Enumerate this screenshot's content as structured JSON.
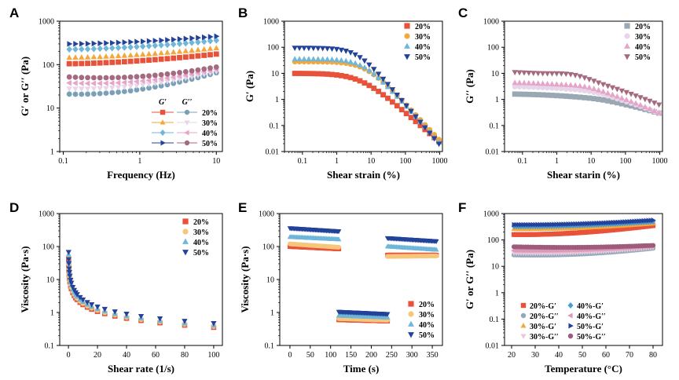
{
  "colors": {
    "red": "#e8523a",
    "orange": "#f2a83b",
    "lightblue": "#6fb6d9",
    "navy": "#23429a",
    "steel": "#7aa0b8",
    "lavender": "#e7d6ea",
    "pink": "#e6a4c8",
    "mauve": "#a46a80",
    "gray": "#9aa8b3",
    "peach": "#f7c67a",
    "mblue": "#4a9ad4",
    "plum": "#9e5c7a",
    "greyblue": "#8eaabb",
    "lightpink": "#ecc6da",
    "rose": "#d89ab8"
  },
  "chart_data": [
    {
      "panel": "A",
      "type": "line",
      "scale": "loglog",
      "xlabel": "Frequency (Hz)",
      "ylabel": "G′ or G′′ (Pa)",
      "xlim": [
        0.09,
        12
      ],
      "ylim": [
        1,
        1000
      ],
      "xticks": [
        0.1,
        1,
        10
      ],
      "xticklabels": [
        "0.1",
        "1",
        "10"
      ],
      "yticks": [
        1,
        10,
        100,
        1000
      ],
      "yticklabels": [
        "1",
        "10",
        "100",
        "1000"
      ],
      "legend_header": [
        "G′",
        "G′′"
      ],
      "legend": [
        {
          "label": "20%",
          "gp": {
            "marker": "square",
            "color": "#e8523a"
          },
          "gpp": {
            "marker": "circle",
            "color": "#7aa0b8"
          }
        },
        {
          "label": "30%",
          "gp": {
            "marker": "triangle",
            "color": "#f2a83b"
          },
          "gpp": {
            "marker": "tridown",
            "color": "#e7d6ea"
          }
        },
        {
          "label": "40%",
          "gp": {
            "marker": "diamond",
            "color": "#6fb6d9"
          },
          "gpp": {
            "marker": "triangle-left",
            "color": "#e6a4c8"
          }
        },
        {
          "label": "50%",
          "gp": {
            "marker": "triangle-right",
            "color": "#23429a"
          },
          "gpp": {
            "marker": "circle",
            "color": "#a46a80"
          }
        }
      ],
      "series": [
        {
          "name": "20% G′",
          "marker": "square",
          "color": "#e8523a",
          "n": 25,
          "x": [
            0.12,
            10
          ],
          "y": [
            105,
            175
          ]
        },
        {
          "name": "30% G′",
          "marker": "triangle",
          "color": "#f2a83b",
          "n": 25,
          "x": [
            0.12,
            10
          ],
          "y": [
            145,
            240
          ]
        },
        {
          "name": "40% G′",
          "marker": "diamond",
          "color": "#6fb6d9",
          "n": 25,
          "x": [
            0.12,
            10
          ],
          "y": [
            225,
            360
          ]
        },
        {
          "name": "50% G′",
          "marker": "triangle-right",
          "color": "#23429a",
          "n": 25,
          "x": [
            0.12,
            10
          ],
          "y": [
            300,
            450
          ]
        },
        {
          "name": "20% G′′",
          "marker": "circle",
          "color": "#7aa0b8",
          "n": 25,
          "x": [
            0.12,
            10
          ],
          "y": [
            21,
            65
          ],
          "dip": 0.15
        },
        {
          "name": "30% G′′",
          "marker": "tridown",
          "color": "#e7d6ea",
          "n": 25,
          "x": [
            0.12,
            10
          ],
          "y": [
            28,
            70
          ],
          "dip": 0.15
        },
        {
          "name": "40% G′′",
          "marker": "triangle-left",
          "color": "#e6a4c8",
          "n": 25,
          "x": [
            0.12,
            10
          ],
          "y": [
            38,
            78
          ],
          "dip": 0.2
        },
        {
          "name": "50% G′′",
          "marker": "circle",
          "color": "#a46a80",
          "n": 25,
          "x": [
            0.12,
            10
          ],
          "y": [
            52,
            88
          ],
          "dip": 0.2
        }
      ]
    },
    {
      "panel": "B",
      "type": "line",
      "scale": "loglog",
      "xlabel": "Shear strain (%)",
      "ylabel": "G′ (Pa)",
      "xlim": [
        0.03,
        1200
      ],
      "ylim": [
        0.01,
        1000
      ],
      "xticks": [
        0.1,
        1,
        10,
        100,
        1000
      ],
      "xticklabels": [
        "0.1",
        "1",
        "10",
        "100",
        "1000"
      ],
      "yticks": [
        0.01,
        0.1,
        1,
        10,
        100,
        1000
      ],
      "yticklabels": [
        "0.01",
        "0.1",
        "1",
        "10",
        "100",
        "1000"
      ],
      "legend": [
        {
          "label": "20%",
          "marker": "square",
          "color": "#e8523a"
        },
        {
          "label": "30%",
          "marker": "circle",
          "color": "#f2a83b"
        },
        {
          "label": "40%",
          "marker": "triangle",
          "color": "#6fb6d9"
        },
        {
          "label": "50%",
          "marker": "tridown",
          "color": "#23429a"
        }
      ],
      "series": [
        {
          "name": "20%",
          "marker": "square",
          "color": "#e8523a",
          "n": 32,
          "x": [
            0.06,
            950
          ],
          "plateau": 10,
          "yc": 5,
          "slope": 1.15
        },
        {
          "name": "30%",
          "marker": "circle",
          "color": "#f2a83b",
          "n": 32,
          "x": [
            0.06,
            950
          ],
          "plateau": 28,
          "yc": 7,
          "slope": 1.4
        },
        {
          "name": "40%",
          "marker": "triangle",
          "color": "#6fb6d9",
          "n": 32,
          "x": [
            0.06,
            950
          ],
          "plateau": 35,
          "yc": 6,
          "slope": 1.45
        },
        {
          "name": "50%",
          "marker": "tridown",
          "color": "#23429a",
          "n": 32,
          "x": [
            0.06,
            950
          ],
          "plateau": 95,
          "yc": 4,
          "slope": 1.55
        }
      ]
    },
    {
      "panel": "C",
      "type": "line",
      "scale": "loglog",
      "xlabel": "Shear starin (%)",
      "ylabel": "G′′ (Pa)",
      "xlim": [
        0.03,
        1200
      ],
      "ylim": [
        0.01,
        1000
      ],
      "xticks": [
        0.1,
        1,
        10,
        100,
        1000
      ],
      "xticklabels": [
        "0.1",
        "1",
        "10",
        "100",
        "1000"
      ],
      "yticks": [
        0.01,
        0.1,
        1,
        10,
        100,
        1000
      ],
      "yticklabels": [
        "0.01",
        "0.1",
        "1",
        "10",
        "100",
        "1000"
      ],
      "legend": [
        {
          "label": "20%",
          "marker": "square",
          "color": "#9aa8b3"
        },
        {
          "label": "30%",
          "marker": "circle",
          "color": "#e7d6ea"
        },
        {
          "label": "40%",
          "marker": "triangle",
          "color": "#e6a4c8"
        },
        {
          "label": "50%",
          "marker": "tridown",
          "color": "#a46a80"
        }
      ],
      "series": [
        {
          "name": "20%",
          "marker": "square",
          "color": "#9aa8b3",
          "n": 32,
          "x": [
            0.06,
            950
          ],
          "plateau": 1.7,
          "bump": 1.05,
          "yc": 30,
          "slope": 0.45
        },
        {
          "name": "30%",
          "marker": "circle",
          "color": "#e7d6ea",
          "n": 32,
          "x": [
            0.06,
            950
          ],
          "plateau": 3.2,
          "bump": 1.1,
          "yc": 15,
          "slope": 0.55
        },
        {
          "name": "40%",
          "marker": "triangle",
          "color": "#e6a4c8",
          "n": 32,
          "x": [
            0.06,
            950
          ],
          "plateau": 4.5,
          "bump": 1.15,
          "yc": 12,
          "slope": 0.6
        },
        {
          "name": "50%",
          "marker": "tridown",
          "color": "#a46a80",
          "n": 32,
          "x": [
            0.06,
            950
          ],
          "plateau": 12,
          "bump": 1.3,
          "yc": 5,
          "slope": 0.55
        }
      ]
    },
    {
      "panel": "D",
      "type": "scatter",
      "scale": "semilogy",
      "xlabel": "Shear rate (1/s)",
      "ylabel": "Viscosity (Pa·s)",
      "xlim": [
        -6,
        106
      ],
      "ylim": [
        0.1,
        1000
      ],
      "xticks": [
        0,
        20,
        40,
        60,
        80,
        100
      ],
      "xticklabels": [
        "0",
        "20",
        "40",
        "60",
        "80",
        "100"
      ],
      "yticks": [
        0.1,
        1,
        10,
        100,
        1000
      ],
      "yticklabels": [
        "0.1",
        "1",
        "10",
        "100",
        "1000"
      ],
      "legend": [
        {
          "label": "20%",
          "marker": "square",
          "color": "#e8523a"
        },
        {
          "label": "30%",
          "marker": "circle",
          "color": "#f7c67a"
        },
        {
          "label": "40%",
          "marker": "triangle",
          "color": "#6fb6d9"
        },
        {
          "label": "50%",
          "marker": "tridown",
          "color": "#23429a"
        }
      ],
      "x": [
        0.1,
        0.2,
        0.3,
        0.5,
        0.7,
        1,
        1.5,
        2,
        3,
        4,
        5,
        6,
        8,
        10,
        13,
        16,
        20,
        25,
        32,
        40,
        50,
        63,
        80,
        100
      ],
      "series": [
        {
          "name": "20%",
          "marker": "square",
          "color": "#e8523a",
          "k": 8.5,
          "n": 0.31
        },
        {
          "name": "30%",
          "marker": "circle",
          "color": "#f7c67a",
          "k": 9.5,
          "n": 0.3
        },
        {
          "name": "40%",
          "marker": "triangle",
          "color": "#6fb6d9",
          "k": 11,
          "n": 0.28
        },
        {
          "name": "50%",
          "marker": "tridown",
          "color": "#23429a",
          "k": 13,
          "n": 0.28
        }
      ]
    },
    {
      "panel": "E",
      "type": "scatter",
      "scale": "semilogy",
      "xlabel": "Time (s)",
      "ylabel": "Viscosity (Pa·s)",
      "xlim": [
        -25,
        375
      ],
      "ylim": [
        0.1,
        1000
      ],
      "xticks": [
        0,
        50,
        100,
        150,
        200,
        250,
        300,
        350
      ],
      "xticklabels": [
        "0",
        "50",
        "100",
        "150",
        "200",
        "250",
        "300",
        "350"
      ],
      "yticks": [
        0.1,
        1,
        10,
        100,
        1000
      ],
      "yticklabels": [
        "0.1",
        "1",
        "10",
        "100",
        "1000"
      ],
      "legend": [
        {
          "label": "20%",
          "marker": "square",
          "color": "#e8523a"
        },
        {
          "label": "30%",
          "marker": "circle",
          "color": "#f7c67a"
        },
        {
          "label": "40%",
          "marker": "triangle",
          "color": "#6fb6d9"
        },
        {
          "label": "50%",
          "marker": "tridown",
          "color": "#23429a"
        }
      ],
      "segments": [
        {
          "name": "20%",
          "marker": "square",
          "color": "#e8523a",
          "stages": [
            {
              "x": [
                0,
                120
              ],
              "y": [
                100,
                85
              ]
            },
            {
              "x": [
                120,
                240
              ],
              "y": [
                0.6,
                0.55
              ]
            },
            {
              "x": [
                240,
                360
              ],
              "y": [
                55,
                55
              ]
            }
          ]
        },
        {
          "name": "30%",
          "marker": "circle",
          "color": "#f7c67a",
          "stages": [
            {
              "x": [
                0,
                120
              ],
              "y": [
                120,
                95
              ]
            },
            {
              "x": [
                120,
                240
              ],
              "y": [
                0.65,
                0.58
              ]
            },
            {
              "x": [
                240,
                360
              ],
              "y": [
                50,
                52
              ]
            }
          ]
        },
        {
          "name": "40%",
          "marker": "triangle",
          "color": "#6fb6d9",
          "stages": [
            {
              "x": [
                0,
                120
              ],
              "y": [
                195,
                165
              ]
            },
            {
              "x": [
                120,
                240
              ],
              "y": [
                0.8,
                0.7
              ]
            },
            {
              "x": [
                240,
                360
              ],
              "y": [
                100,
                80
              ]
            }
          ]
        },
        {
          "name": "50%",
          "marker": "tridown",
          "color": "#23429a",
          "stages": [
            {
              "x": [
                0,
                120
              ],
              "y": [
                360,
                290
              ]
            },
            {
              "x": [
                120,
                240
              ],
              "y": [
                1.05,
                0.9
              ]
            },
            {
              "x": [
                240,
                360
              ],
              "y": [
                180,
                145
              ]
            }
          ]
        }
      ]
    },
    {
      "panel": "F",
      "type": "line",
      "scale": "semilogy",
      "xlabel": "Temperature (°C)",
      "ylabel": "G′ or G′′ (Pa)",
      "xlim": [
        17,
        84
      ],
      "ylim": [
        0.01,
        1000
      ],
      "xticks": [
        20,
        30,
        40,
        50,
        60,
        70,
        80
      ],
      "xticklabels": [
        "20",
        "30",
        "40",
        "50",
        "60",
        "70",
        "80"
      ],
      "yticks": [
        0.01,
        0.1,
        1,
        10,
        100,
        1000
      ],
      "yticklabels": [
        "0.01",
        "0.1",
        "1",
        "10",
        "100",
        "1000"
      ],
      "legend": [
        {
          "label": "20%-G′",
          "marker": "square",
          "color": "#e8523a"
        },
        {
          "label": "40%-G′",
          "marker": "diamond",
          "color": "#4a9ad4"
        },
        {
          "label": "20%-G′′",
          "marker": "circle",
          "color": "#8eaabb"
        },
        {
          "label": "40%-G′′",
          "marker": "triangle-left",
          "color": "#d89ab8"
        },
        {
          "label": "30%-G′",
          "marker": "triangle",
          "color": "#f2a83b"
        },
        {
          "label": "50%-G′",
          "marker": "triangle-right",
          "color": "#23429a"
        },
        {
          "label": "30%-G′′",
          "marker": "tridown",
          "color": "#ecc6da"
        },
        {
          "label": "50%-G′′",
          "marker": "circle",
          "color": "#9e5c7a"
        }
      ],
      "series": [
        {
          "name": "20%-G′",
          "marker": "square",
          "color": "#e8523a",
          "n": 60,
          "x": [
            21,
            80
          ],
          "y": [
            160,
            350
          ],
          "dip": 0.1
        },
        {
          "name": "30%-G′",
          "marker": "triangle",
          "color": "#f2a83b",
          "n": 60,
          "x": [
            21,
            80
          ],
          "y": [
            260,
            420
          ],
          "dip": 0.08
        },
        {
          "name": "40%-G′",
          "marker": "diamond",
          "color": "#4a9ad4",
          "n": 60,
          "x": [
            21,
            80
          ],
          "y": [
            330,
            500
          ],
          "dip": 0.06
        },
        {
          "name": "50%-G′",
          "marker": "triangle-right",
          "color": "#23429a",
          "n": 60,
          "x": [
            21,
            80
          ],
          "y": [
            380,
            560
          ],
          "dip": 0.06
        },
        {
          "name": "20%-G′′",
          "marker": "circle",
          "color": "#8eaabb",
          "n": 60,
          "x": [
            21,
            80
          ],
          "y": [
            27,
            48
          ],
          "dip": 0.15
        },
        {
          "name": "30%-G′′",
          "marker": "tridown",
          "color": "#ecc6da",
          "n": 60,
          "x": [
            21,
            80
          ],
          "y": [
            32,
            52
          ],
          "dip": 0.15
        },
        {
          "name": "40%-G′′",
          "marker": "triangle-left",
          "color": "#d89ab8",
          "n": 60,
          "x": [
            21,
            80
          ],
          "y": [
            40,
            58
          ],
          "dip": 0.1
        },
        {
          "name": "50%-G′′",
          "marker": "circle",
          "color": "#9e5c7a",
          "n": 60,
          "x": [
            21,
            80
          ],
          "y": [
            55,
            62
          ],
          "dip": 0.12
        }
      ]
    }
  ]
}
